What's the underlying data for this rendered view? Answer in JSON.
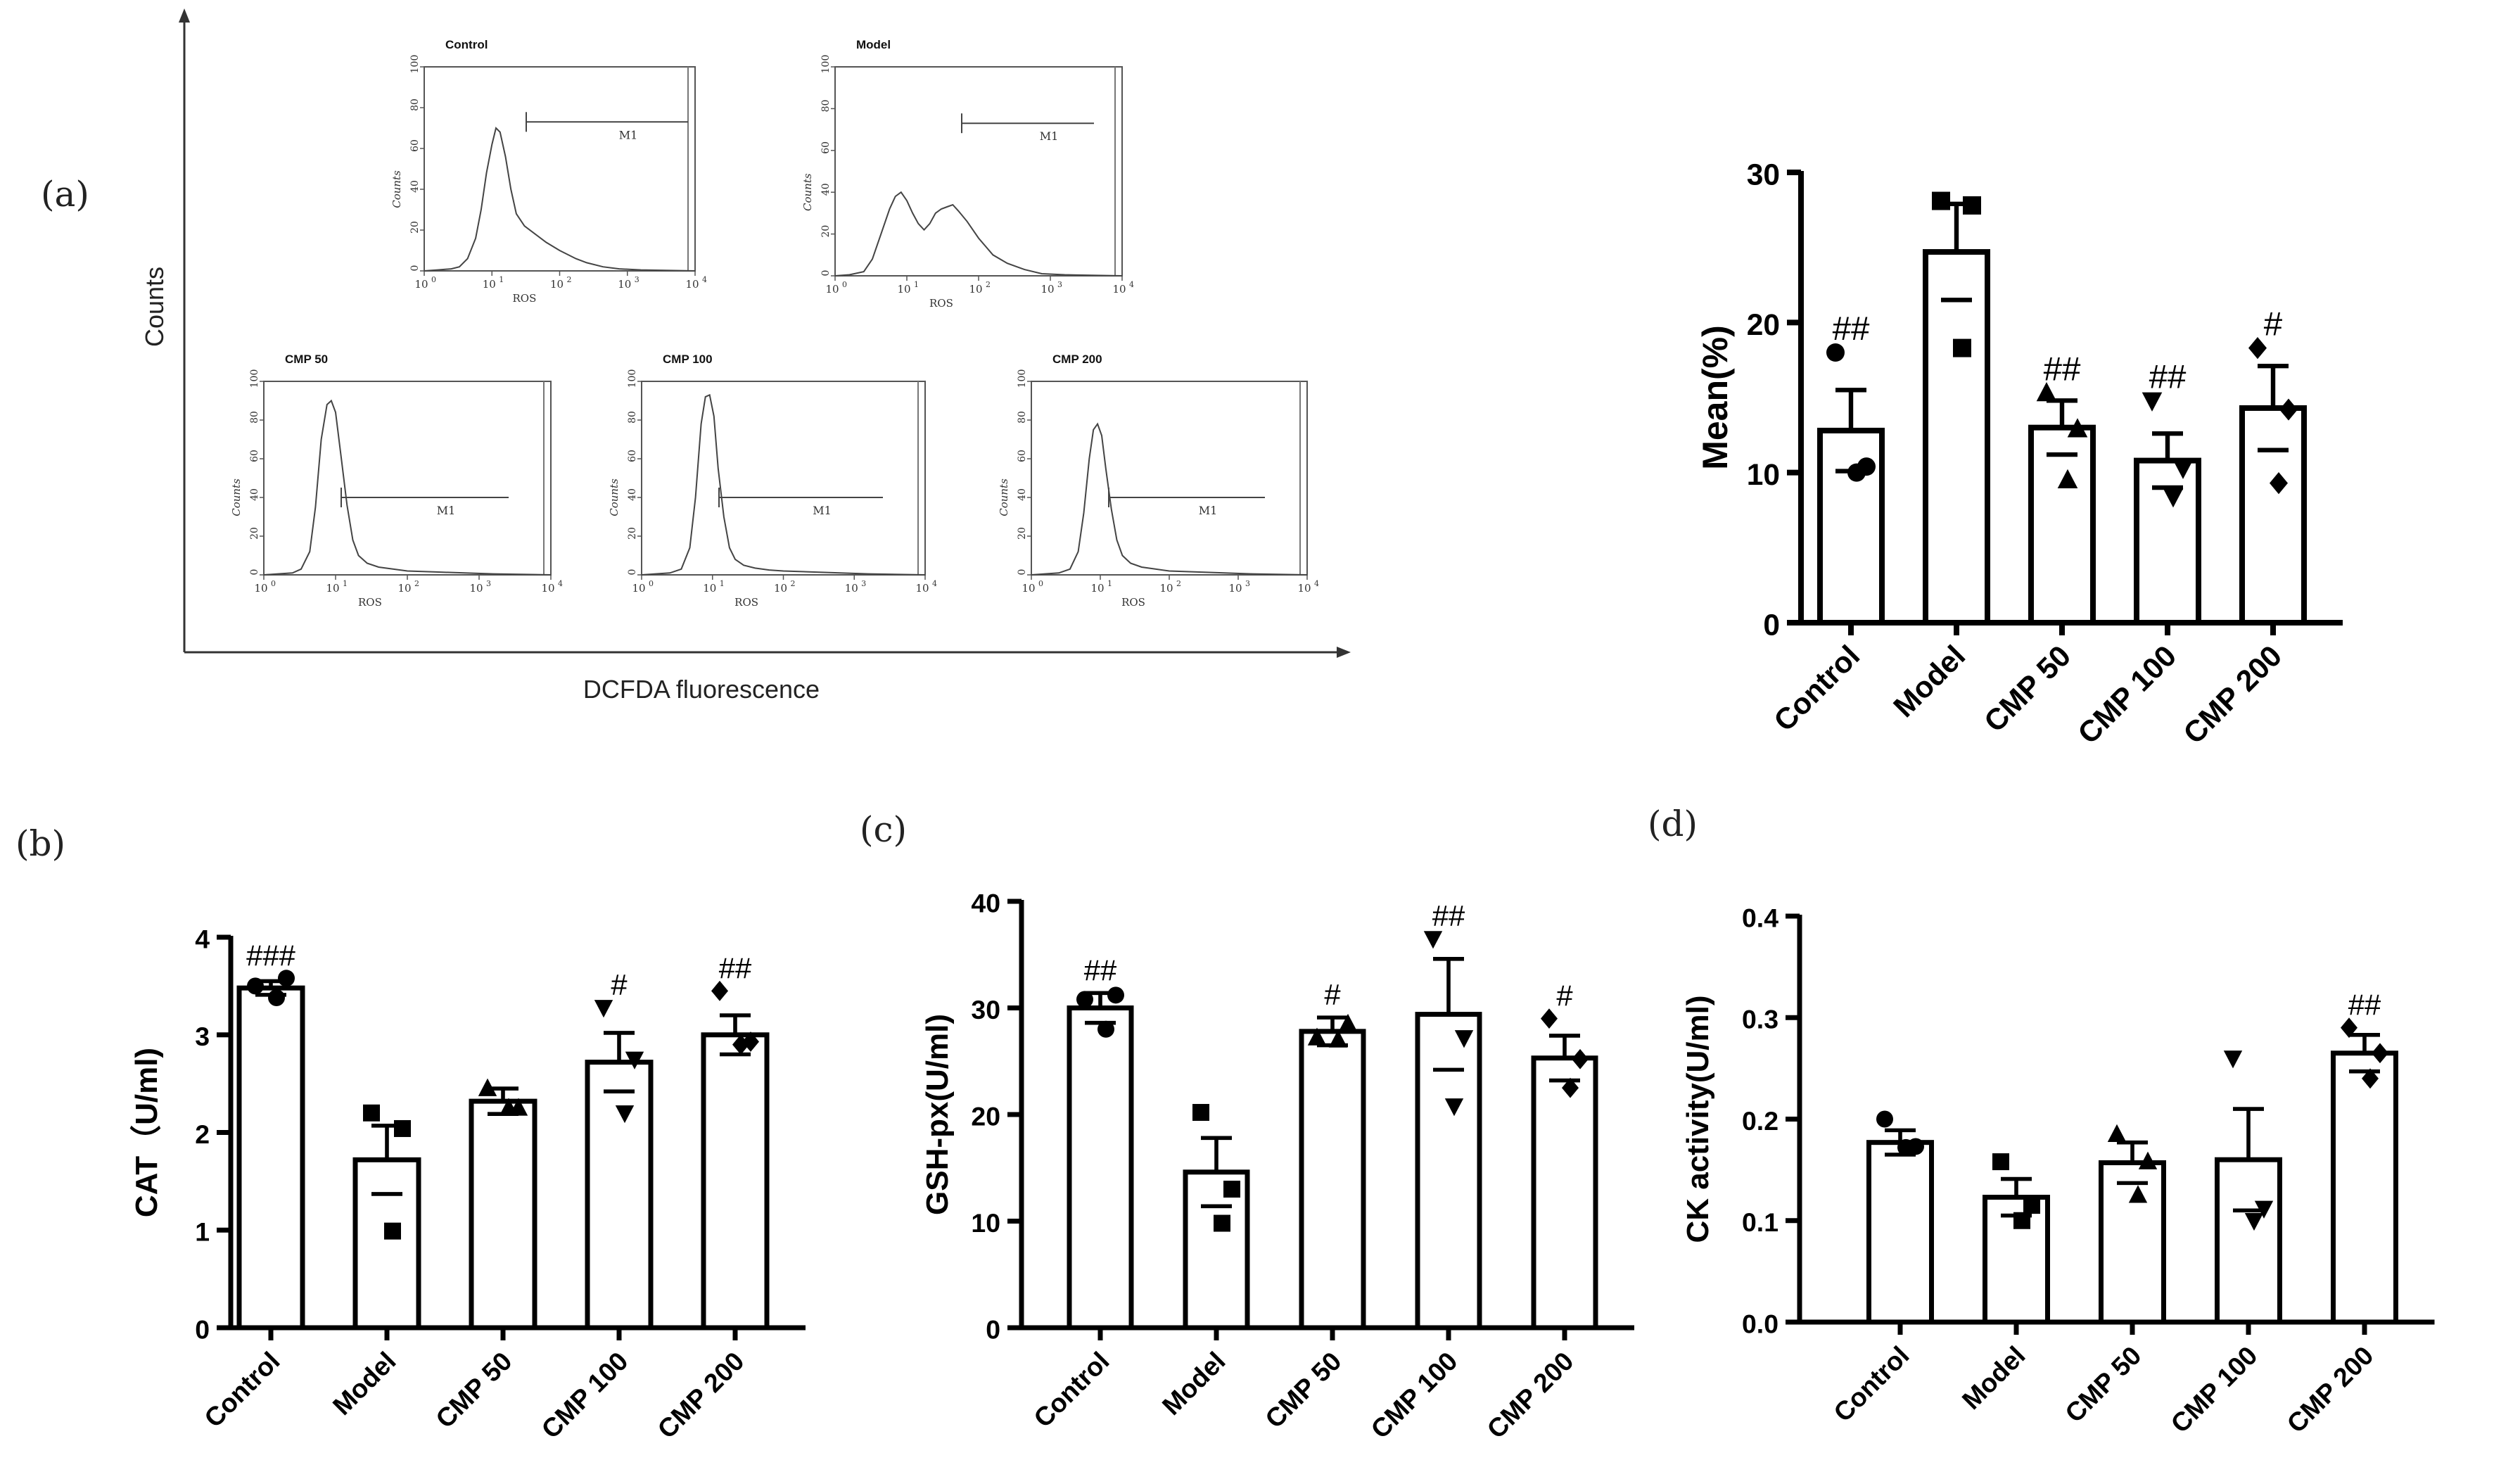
{
  "panel_labels": {
    "a": "(a)",
    "b": "(b)",
    "c": "(c)",
    "d": "(d)"
  },
  "flow": {
    "y_axis_label": "Counts",
    "x_axis_label": "DCFDA fluorescence",
    "hist_ylabel": "Counts",
    "hist_xlabel": "ROS",
    "y_ticks": [
      "0",
      "20",
      "40",
      "60",
      "80",
      "100"
    ],
    "x_ticks": [
      "10",
      "10",
      "10",
      "10",
      "10"
    ],
    "x_exps": [
      "0",
      "1",
      "2",
      "3",
      "4"
    ],
    "gate_label": "M1",
    "histograms": [
      {
        "title": "Control",
        "shape": [
          [
            0,
            0
          ],
          [
            0.05,
            0.5
          ],
          [
            0.1,
            1
          ],
          [
            0.13,
            2
          ],
          [
            0.16,
            6
          ],
          [
            0.19,
            16
          ],
          [
            0.21,
            30
          ],
          [
            0.23,
            48
          ],
          [
            0.25,
            62
          ],
          [
            0.265,
            70
          ],
          [
            0.28,
            68
          ],
          [
            0.3,
            56
          ],
          [
            0.32,
            40
          ],
          [
            0.34,
            28
          ],
          [
            0.37,
            22
          ],
          [
            0.41,
            18
          ],
          [
            0.45,
            14
          ],
          [
            0.5,
            10
          ],
          [
            0.56,
            6
          ],
          [
            0.6,
            4
          ],
          [
            0.66,
            2
          ],
          [
            0.72,
            1
          ],
          [
            0.8,
            0.5
          ],
          [
            1,
            0
          ]
        ]
      },
      {
        "title": "Model",
        "shape": [
          [
            0,
            0
          ],
          [
            0.05,
            0.5
          ],
          [
            0.1,
            2
          ],
          [
            0.13,
            8
          ],
          [
            0.16,
            20
          ],
          [
            0.19,
            32
          ],
          [
            0.21,
            38
          ],
          [
            0.23,
            40
          ],
          [
            0.25,
            36
          ],
          [
            0.27,
            30
          ],
          [
            0.29,
            25
          ],
          [
            0.31,
            22
          ],
          [
            0.33,
            25
          ],
          [
            0.35,
            30
          ],
          [
            0.37,
            32
          ],
          [
            0.39,
            33
          ],
          [
            0.41,
            34
          ],
          [
            0.43,
            31
          ],
          [
            0.46,
            26
          ],
          [
            0.5,
            18
          ],
          [
            0.55,
            10
          ],
          [
            0.6,
            6
          ],
          [
            0.66,
            3
          ],
          [
            0.72,
            1
          ],
          [
            0.8,
            0.5
          ],
          [
            1,
            0
          ]
        ]
      },
      {
        "title": "CMP 50",
        "shape": [
          [
            0,
            0
          ],
          [
            0.05,
            0.5
          ],
          [
            0.1,
            1
          ],
          [
            0.13,
            3
          ],
          [
            0.16,
            12
          ],
          [
            0.18,
            35
          ],
          [
            0.2,
            70
          ],
          [
            0.22,
            88
          ],
          [
            0.235,
            90
          ],
          [
            0.25,
            84
          ],
          [
            0.27,
            60
          ],
          [
            0.29,
            36
          ],
          [
            0.31,
            18
          ],
          [
            0.33,
            10
          ],
          [
            0.36,
            6
          ],
          [
            0.4,
            4
          ],
          [
            0.45,
            3
          ],
          [
            0.5,
            2
          ],
          [
            0.6,
            1.5
          ],
          [
            0.7,
            1
          ],
          [
            0.8,
            0.5
          ],
          [
            1,
            0
          ]
        ]
      },
      {
        "title": "CMP 100",
        "shape": [
          [
            0,
            0
          ],
          [
            0.05,
            0.5
          ],
          [
            0.1,
            1
          ],
          [
            0.14,
            3
          ],
          [
            0.17,
            14
          ],
          [
            0.19,
            40
          ],
          [
            0.21,
            78
          ],
          [
            0.225,
            92
          ],
          [
            0.24,
            93
          ],
          [
            0.255,
            82
          ],
          [
            0.27,
            55
          ],
          [
            0.29,
            30
          ],
          [
            0.31,
            14
          ],
          [
            0.33,
            8
          ],
          [
            0.36,
            5
          ],
          [
            0.4,
            3.5
          ],
          [
            0.45,
            2.5
          ],
          [
            0.5,
            2
          ],
          [
            0.6,
            1.5
          ],
          [
            0.7,
            1
          ],
          [
            0.8,
            0.5
          ],
          [
            1,
            0
          ]
        ]
      },
      {
        "title": "CMP 200",
        "shape": [
          [
            0,
            0
          ],
          [
            0.05,
            0.5
          ],
          [
            0.1,
            1
          ],
          [
            0.14,
            3
          ],
          [
            0.17,
            12
          ],
          [
            0.19,
            32
          ],
          [
            0.21,
            60
          ],
          [
            0.225,
            75
          ],
          [
            0.24,
            78
          ],
          [
            0.255,
            72
          ],
          [
            0.27,
            55
          ],
          [
            0.29,
            34
          ],
          [
            0.31,
            18
          ],
          [
            0.33,
            10
          ],
          [
            0.36,
            6
          ],
          [
            0.4,
            4
          ],
          [
            0.45,
            3
          ],
          [
            0.5,
            2
          ],
          [
            0.6,
            1.5
          ],
          [
            0.7,
            1
          ],
          [
            0.8,
            0.5
          ],
          [
            1,
            0
          ]
        ]
      }
    ]
  },
  "chart_data": [
    {
      "type": "bar",
      "title": "",
      "ylabel": "Mean(%)",
      "xlabel": "",
      "categories": [
        "Control",
        "Model",
        "CMP 50",
        "CMP 100",
        "CMP 200"
      ],
      "values": [
        12.8,
        24.7,
        13.0,
        10.8,
        14.3
      ],
      "errors": [
        2.7,
        3.2,
        1.8,
        1.8,
        2.8
      ],
      "points": [
        [
          18.0,
          10.4,
          10.0
        ],
        [
          28.1,
          27.8,
          18.3
        ],
        [
          15.3,
          12.9,
          9.5
        ],
        [
          14.8,
          10.3,
          8.4
        ],
        [
          18.3,
          14.2,
          9.3
        ]
      ],
      "markers": [
        "circle",
        "square",
        "triangle-up",
        "triangle-down",
        "diamond"
      ],
      "significance": [
        "##",
        "",
        "##",
        "##",
        "#"
      ],
      "ylim": [
        0,
        30
      ],
      "yticks": [
        0,
        10,
        20,
        30
      ]
    },
    {
      "type": "bar",
      "title": "",
      "ylabel": "CAT（U/ml)",
      "xlabel": "",
      "categories": [
        "Control",
        "Model",
        "CMP 50",
        "CMP 100",
        "CMP 200"
      ],
      "values": [
        3.48,
        1.72,
        2.32,
        2.72,
        3.0
      ],
      "errors": [
        0.07,
        0.35,
        0.13,
        0.3,
        0.2
      ],
      "points": [
        [
          3.5,
          3.58,
          3.38
        ],
        [
          2.2,
          2.04,
          0.99
        ],
        [
          2.45,
          2.25,
          2.25
        ],
        [
          3.28,
          2.75,
          2.2
        ],
        [
          3.45,
          2.93,
          2.9
        ]
      ],
      "markers": [
        "circle",
        "square",
        "triangle-up",
        "triangle-down",
        "diamond"
      ],
      "significance": [
        "###",
        "",
        "",
        "#",
        "##"
      ],
      "ylim": [
        0,
        4
      ],
      "yticks": [
        0,
        1,
        2,
        3,
        4
      ]
    },
    {
      "type": "bar",
      "title": "",
      "ylabel": "GSH-px(U/ml)",
      "xlabel": "",
      "categories": [
        "Control",
        "Model",
        "CMP 50",
        "CMP 100",
        "CMP 200"
      ],
      "values": [
        30.0,
        14.6,
        27.8,
        29.4,
        25.3
      ],
      "errors": [
        1.4,
        3.2,
        1.3,
        5.2,
        2.1
      ],
      "points": [
        [
          30.8,
          31.2,
          28.0
        ],
        [
          20.2,
          13.0,
          9.8
        ],
        [
          27.2,
          28.5,
          27.0
        ],
        [
          36.5,
          27.2,
          20.8
        ],
        [
          29.0,
          25.2,
          22.5
        ]
      ],
      "markers": [
        "circle",
        "square",
        "triangle-up",
        "triangle-down",
        "diamond"
      ],
      "significance": [
        "##",
        "",
        "#",
        "##",
        "#"
      ],
      "ylim": [
        0,
        40
      ],
      "yticks": [
        0,
        10,
        20,
        30,
        40
      ]
    },
    {
      "type": "bar",
      "title": "",
      "ylabel": "CK activity(U/ml)",
      "xlabel": "",
      "categories": [
        "Control",
        "Model",
        "CMP 50",
        "CMP 100",
        "CMP 200"
      ],
      "values": [
        0.177,
        0.123,
        0.157,
        0.16,
        0.265
      ],
      "errors": [
        0.012,
        0.018,
        0.02,
        0.05,
        0.018
      ],
      "points": [
        [
          0.2,
          0.173,
          0.172
        ],
        [
          0.158,
          0.115,
          0.1
        ],
        [
          0.185,
          0.158,
          0.125
        ],
        [
          0.26,
          0.112,
          0.1
        ],
        [
          0.29,
          0.265,
          0.24
        ]
      ],
      "markers": [
        "circle",
        "square",
        "triangle-up",
        "triangle-down",
        "diamond"
      ],
      "significance": [
        "",
        "",
        "",
        "",
        "##"
      ],
      "ylim": [
        0,
        0.4
      ],
      "yticks": [
        0.0,
        0.1,
        0.2,
        0.3,
        0.4
      ]
    }
  ]
}
